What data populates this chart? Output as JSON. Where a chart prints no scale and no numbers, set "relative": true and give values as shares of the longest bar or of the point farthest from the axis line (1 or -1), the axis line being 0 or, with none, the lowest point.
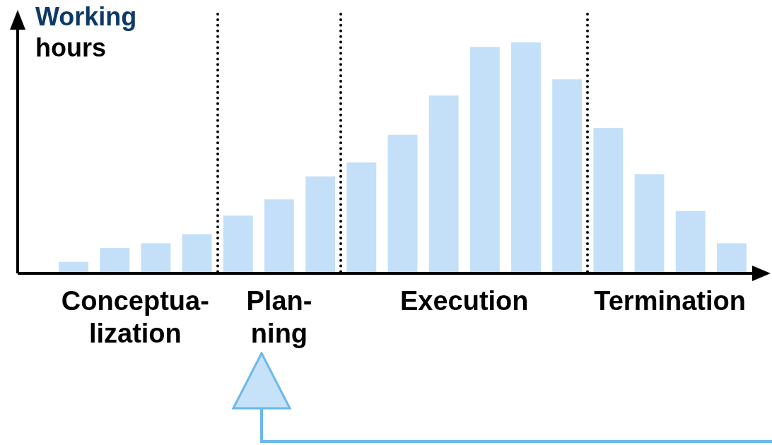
{
  "chart_data": {
    "type": "bar",
    "relative": true,
    "stacked": true,
    "ylabel": "Working hours",
    "categories": [
      null,
      null,
      null,
      null,
      null,
      null,
      null,
      null,
      null,
      null,
      null,
      null,
      null,
      null,
      null,
      null,
      null
    ],
    "series": [
      {
        "name": "Conceptua-\nlization",
        "color": "#c3e0f8",
        "values": [
          0.05,
          0.11,
          0.13,
          0.17,
          null,
          null,
          null,
          null,
          null,
          null,
          null,
          null,
          null,
          null,
          null,
          null,
          null
        ]
      },
      {
        "name": "Plan-\nning",
        "color": "#c3e0f8",
        "values": [
          null,
          null,
          null,
          null,
          0.25,
          0.32,
          0.42,
          null,
          null,
          null,
          null,
          null,
          null,
          null,
          null,
          null,
          null
        ]
      },
      {
        "name": "Execution",
        "color": "#c3e0f8",
        "values": [
          null,
          null,
          null,
          null,
          null,
          null,
          null,
          0.48,
          0.6,
          0.77,
          0.98,
          1,
          0.84,
          null,
          null,
          null,
          null
        ]
      },
      {
        "name": "Termination",
        "color": "#c3e0f8",
        "values": [
          null,
          null,
          null,
          null,
          null,
          null,
          null,
          null,
          null,
          null,
          null,
          null,
          null,
          0.63,
          0.43,
          0.27,
          0.13
        ]
      }
    ],
    "tick_labels": false
  }
}
